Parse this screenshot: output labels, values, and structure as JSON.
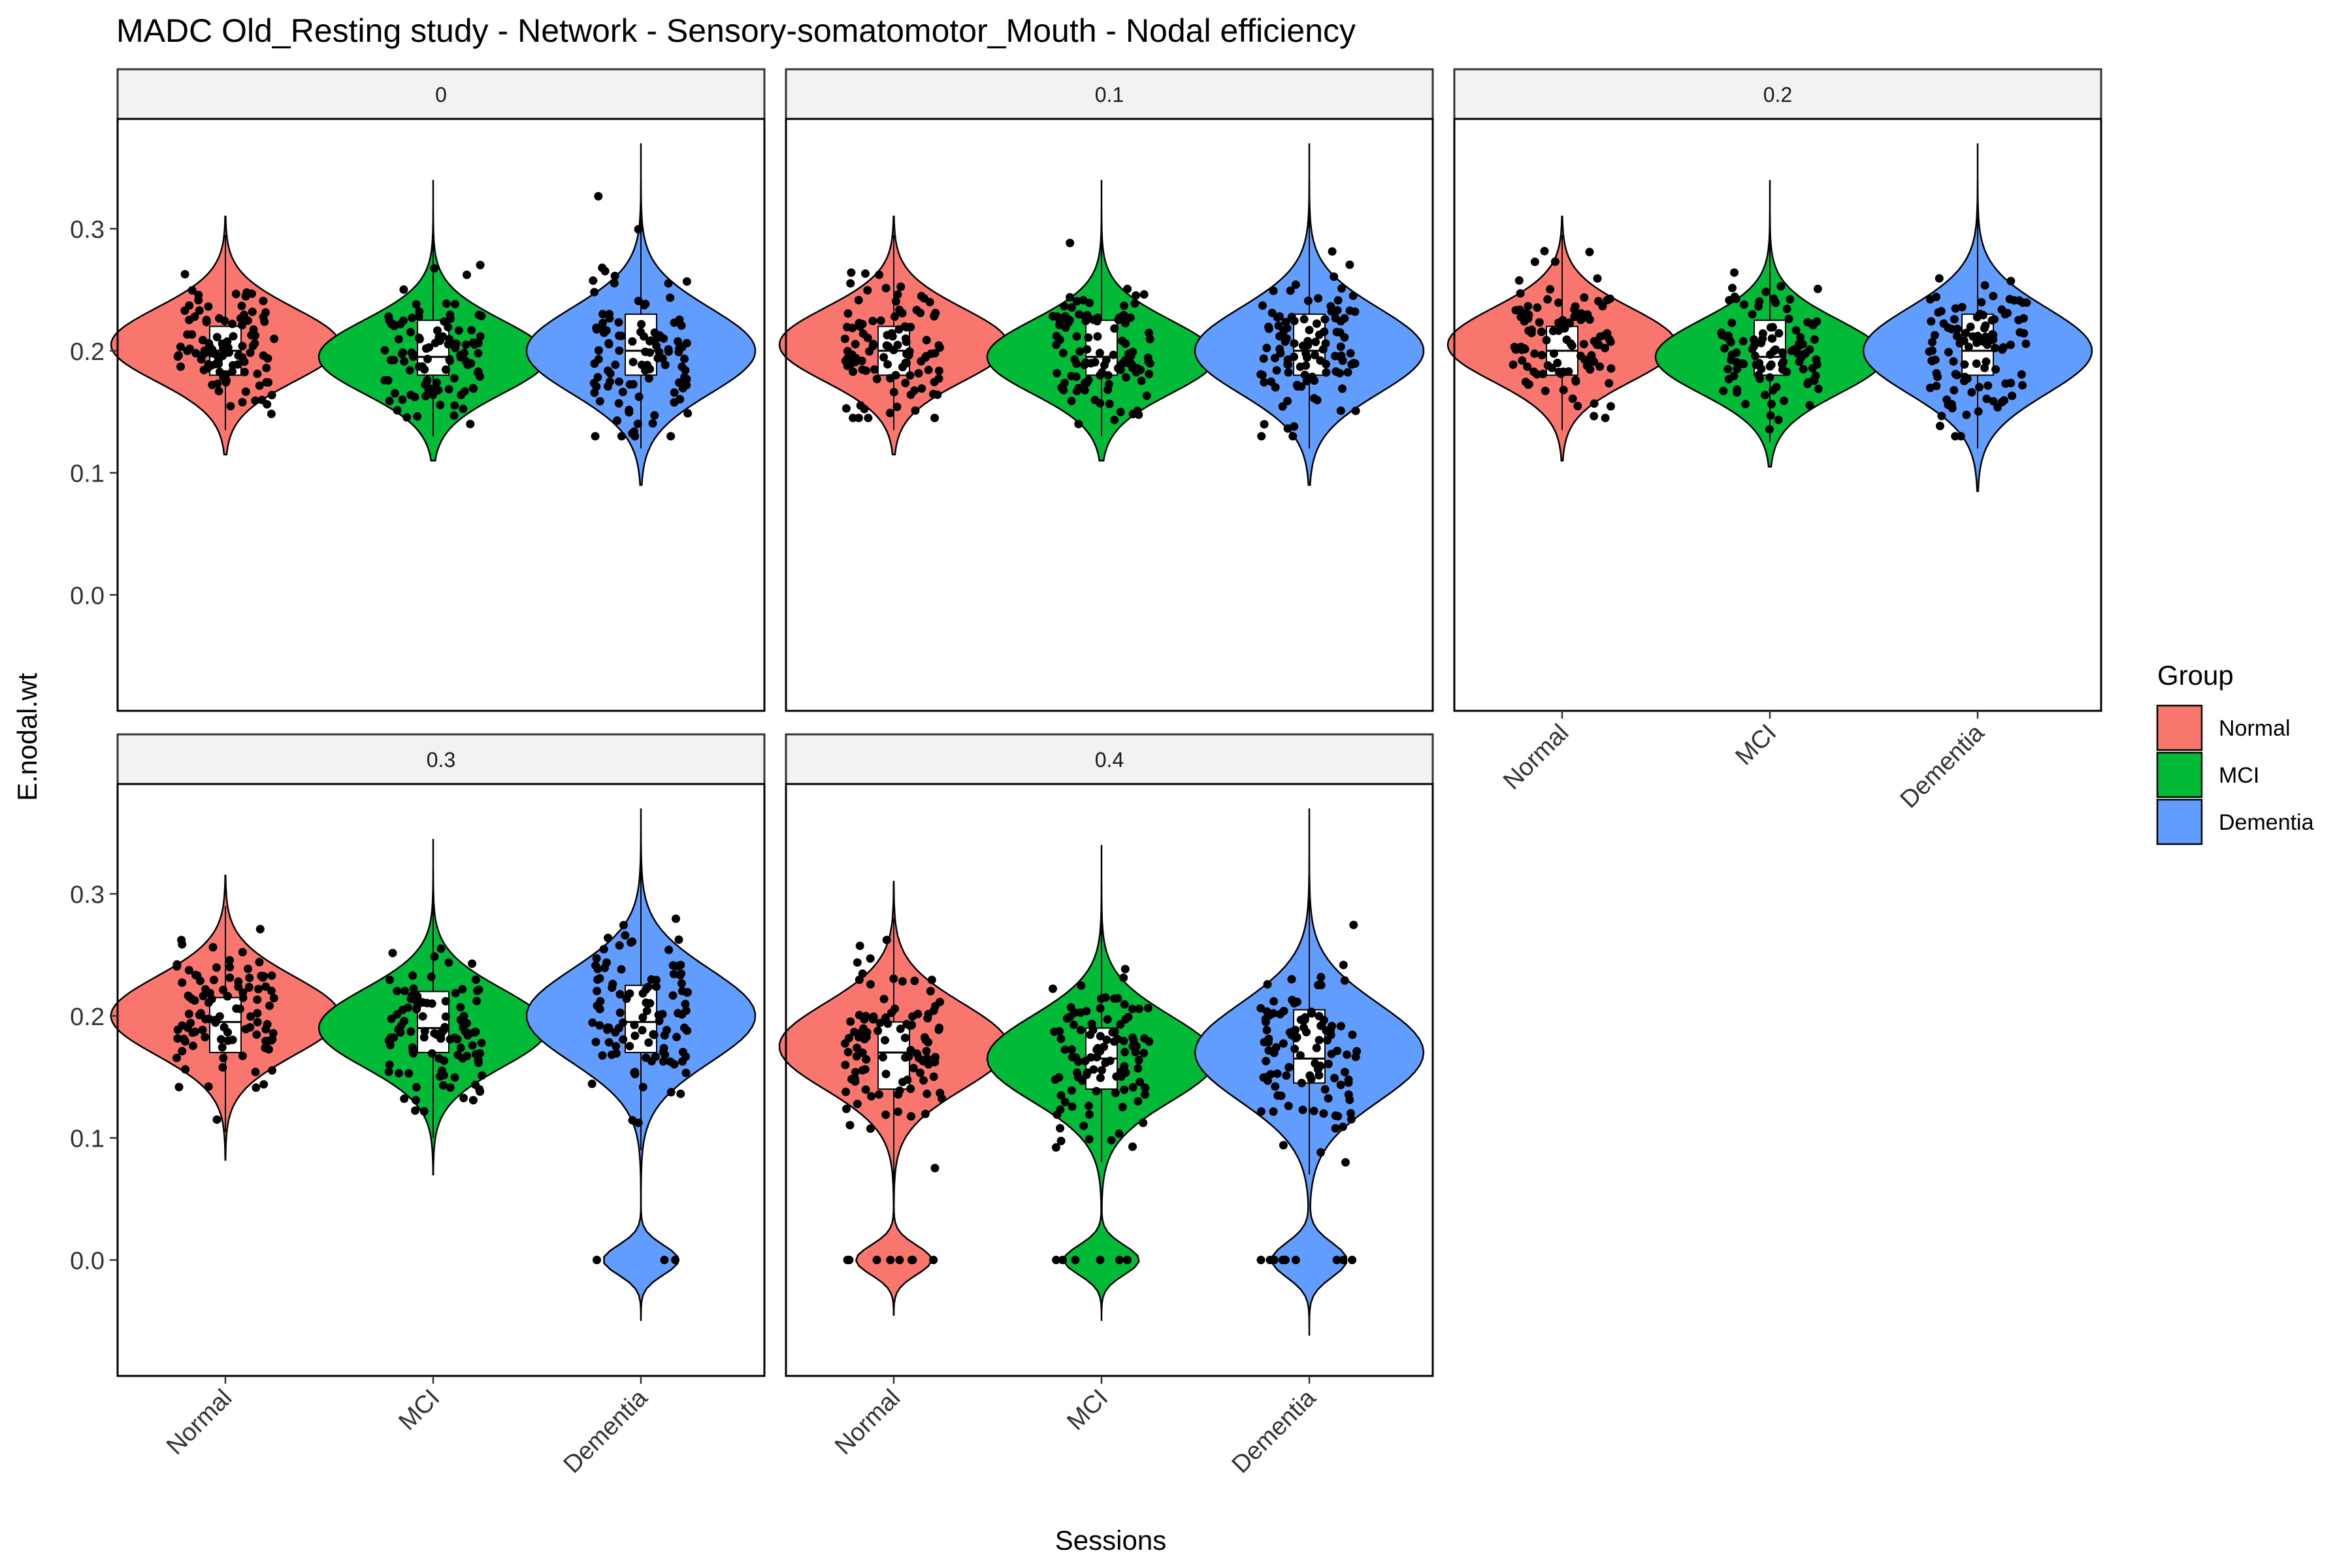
{
  "chart_data": {
    "type": "violin",
    "title": "MADC Old_Resting study - Network - Sensory-somatomotor_Mouth - Nodal efficiency",
    "xlabel": "Sessions",
    "ylabel": "E.nodal.wt",
    "ylim": [
      -0.095,
      0.39
    ],
    "yticks": [
      0.0,
      0.1,
      0.2,
      0.3
    ],
    "ytick_labels": [
      "0.0",
      "0.1",
      "0.2",
      "0.3"
    ],
    "categories": [
      "Normal",
      "MCI",
      "Dementia"
    ],
    "legend": {
      "title": "Group",
      "position": "right",
      "entries": [
        "Normal",
        "MCI",
        "Dementia"
      ]
    },
    "colors": {
      "Normal": "#F8766D",
      "MCI": "#00BA38",
      "Dementia": "#619CFF"
    },
    "facets": [
      {
        "label": "0",
        "groups": [
          {
            "name": "Normal",
            "min": 0.115,
            "max": 0.31,
            "q1": 0.18,
            "median": 0.2,
            "q3": 0.22,
            "modes": [
              [
                0.205,
                0.03
              ]
            ],
            "point_range": [
              0.145,
              0.285
            ]
          },
          {
            "name": "MCI",
            "min": 0.11,
            "max": 0.34,
            "q1": 0.18,
            "median": 0.195,
            "q3": 0.225,
            "modes": [
              [
                0.195,
                0.03
              ]
            ],
            "point_range": [
              0.14,
              0.31
            ]
          },
          {
            "name": "Dementia",
            "min": 0.09,
            "max": 0.37,
            "q1": 0.18,
            "median": 0.2,
            "q3": 0.23,
            "modes": [
              [
                0.2,
                0.035
              ]
            ],
            "point_range": [
              0.13,
              0.33
            ]
          }
        ]
      },
      {
        "label": "0.1",
        "groups": [
          {
            "name": "Normal",
            "min": 0.115,
            "max": 0.31,
            "q1": 0.18,
            "median": 0.2,
            "q3": 0.22,
            "modes": [
              [
                0.205,
                0.03
              ]
            ],
            "point_range": [
              0.145,
              0.285
            ]
          },
          {
            "name": "MCI",
            "min": 0.11,
            "max": 0.34,
            "q1": 0.18,
            "median": 0.195,
            "q3": 0.225,
            "modes": [
              [
                0.195,
                0.03
              ]
            ],
            "point_range": [
              0.14,
              0.31
            ]
          },
          {
            "name": "Dementia",
            "min": 0.09,
            "max": 0.37,
            "q1": 0.18,
            "median": 0.2,
            "q3": 0.23,
            "modes": [
              [
                0.2,
                0.035
              ]
            ],
            "point_range": [
              0.13,
              0.33
            ]
          }
        ]
      },
      {
        "label": "0.2",
        "groups": [
          {
            "name": "Normal",
            "min": 0.11,
            "max": 0.31,
            "q1": 0.18,
            "median": 0.2,
            "q3": 0.22,
            "modes": [
              [
                0.205,
                0.03
              ]
            ],
            "point_range": [
              0.145,
              0.285
            ]
          },
          {
            "name": "MCI",
            "min": 0.105,
            "max": 0.34,
            "q1": 0.18,
            "median": 0.195,
            "q3": 0.225,
            "modes": [
              [
                0.195,
                0.03
              ]
            ],
            "point_range": [
              0.135,
              0.31
            ]
          },
          {
            "name": "Dementia",
            "min": 0.085,
            "max": 0.37,
            "q1": 0.18,
            "median": 0.2,
            "q3": 0.23,
            "modes": [
              [
                0.2,
                0.035
              ]
            ],
            "point_range": [
              0.13,
              0.33
            ]
          }
        ]
      },
      {
        "label": "0.3",
        "groups": [
          {
            "name": "Normal",
            "min": 0.082,
            "max": 0.315,
            "q1": 0.17,
            "median": 0.195,
            "q3": 0.215,
            "modes": [
              [
                0.2,
                0.032
              ]
            ],
            "point_range": [
              0.115,
              0.28
            ]
          },
          {
            "name": "MCI",
            "min": 0.07,
            "max": 0.345,
            "q1": 0.17,
            "median": 0.19,
            "q3": 0.22,
            "modes": [
              [
                0.19,
                0.032
              ]
            ],
            "point_range": [
              0.11,
              0.31
            ]
          },
          {
            "name": "Dementia",
            "min": -0.05,
            "max": 0.37,
            "q1": 0.17,
            "median": 0.195,
            "q3": 0.225,
            "modes": [
              [
                0.2,
                0.038
              ],
              [
                0.0,
                0.012
              ]
            ],
            "point_range": [
              0.1,
              0.325
            ],
            "zeros": 3
          }
        ]
      },
      {
        "label": "0.4",
        "groups": [
          {
            "name": "Normal",
            "min": -0.045,
            "max": 0.31,
            "q1": 0.14,
            "median": 0.17,
            "q3": 0.195,
            "modes": [
              [
                0.175,
                0.035
              ],
              [
                0.0,
                0.012
              ]
            ],
            "point_range": [
              0.05,
              0.27
            ],
            "zeros": 8
          },
          {
            "name": "MCI",
            "min": -0.05,
            "max": 0.34,
            "q1": 0.14,
            "median": 0.165,
            "q3": 0.19,
            "modes": [
              [
                0.165,
                0.035
              ],
              [
                0.0,
                0.012
              ]
            ],
            "point_range": [
              0.09,
              0.295
            ],
            "zeros": 6
          },
          {
            "name": "Dementia",
            "min": -0.062,
            "max": 0.37,
            "q1": 0.145,
            "median": 0.165,
            "q3": 0.205,
            "modes": [
              [
                0.17,
                0.04
              ],
              [
                0.0,
                0.014
              ]
            ],
            "point_range": [
              0.08,
              0.31
            ],
            "zeros": 10
          }
        ]
      }
    ]
  }
}
